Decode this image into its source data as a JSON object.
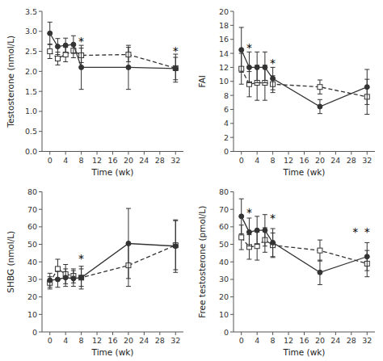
{
  "chart_data": [
    {
      "type": "line",
      "xlabel": "Time (wk)",
      "ylabel": "Testosterone (nmol/L)",
      "x": [
        0,
        2,
        4,
        6,
        8,
        20,
        32
      ],
      "xlim": [
        -2,
        34
      ],
      "xticks": [
        0,
        4,
        8,
        12,
        16,
        20,
        24,
        28,
        32
      ],
      "ylim": [
        0.0,
        3.5
      ],
      "yticks": [
        {
          "value": 0.0,
          "label": "0.0"
        },
        0.5,
        {
          "value": 1.0,
          "label": "1.0"
        },
        1.5,
        {
          "value": 2.0,
          "label": "2.0"
        },
        2.5,
        {
          "value": 3.0,
          "label": "3.0"
        },
        3.5
      ],
      "grid": false,
      "series": [
        {
          "color": "#333333",
          "marker": "circle",
          "line_style": "solid",
          "values": [
            2.95,
            2.62,
            2.65,
            2.67,
            2.1,
            2.1,
            2.07
          ],
          "errors": [
            0.28,
            0.2,
            0.18,
            0.22,
            0.55,
            0.55,
            0.28
          ]
        },
        {
          "color": "#333333",
          "marker": "open-square",
          "line_style": "dashed",
          "values": [
            2.5,
            2.32,
            2.42,
            2.52,
            2.4,
            2.42,
            2.08
          ],
          "errors": [
            0.18,
            0.16,
            0.18,
            0.18,
            0.18,
            0.18,
            0.35
          ]
        }
      ],
      "annotations": [
        {
          "text": "*",
          "x": 8,
          "y": 2.8
        },
        {
          "text": "*",
          "x": 32,
          "y": 2.55
        }
      ]
    },
    {
      "type": "line",
      "xlabel": "Time (wk)",
      "ylabel": "FAI",
      "x": [
        0,
        2,
        4,
        6,
        8,
        20,
        32
      ],
      "xlim": [
        -2,
        34
      ],
      "xticks": [
        0,
        4,
        8,
        12,
        16,
        20,
        24,
        28,
        32
      ],
      "ylim": [
        0,
        20
      ],
      "yticks": [
        0,
        2,
        4,
        6,
        8,
        10,
        12,
        14,
        16,
        18,
        20
      ],
      "grid": false,
      "series": [
        {
          "color": "#333333",
          "marker": "circle",
          "line_style": "solid",
          "values": [
            14.5,
            12.0,
            12.0,
            12.0,
            10.4,
            6.4,
            9.2
          ],
          "errors": [
            3.2,
            2.2,
            2.2,
            2.2,
            1.6,
            1.0,
            2.5
          ]
        },
        {
          "color": "#333333",
          "marker": "open-square",
          "line_style": "dashed",
          "values": [
            11.8,
            9.6,
            9.8,
            9.8,
            9.6,
            9.2,
            7.8
          ],
          "errors": [
            2.2,
            1.8,
            2.5,
            2.5,
            1.2,
            1.0,
            2.5
          ]
        }
      ],
      "annotations": [
        {
          "text": "*",
          "x": 2,
          "y": 15.0
        },
        {
          "text": "*",
          "x": 8,
          "y": 12.8
        }
      ]
    },
    {
      "type": "line",
      "xlabel": "Time (wk)",
      "ylabel": "SHBG (nmol/L)",
      "x": [
        0,
        2,
        4,
        6,
        8,
        20,
        32
      ],
      "xlim": [
        -2,
        34
      ],
      "xticks": [
        0,
        4,
        8,
        12,
        16,
        20,
        24,
        28,
        32
      ],
      "ylim": [
        0,
        80
      ],
      "yticks": [
        0,
        10,
        20,
        30,
        40,
        50,
        60,
        70,
        80
      ],
      "grid": false,
      "series": [
        {
          "color": "#333333",
          "marker": "circle",
          "line_style": "solid",
          "values": [
            29.5,
            30.0,
            31.0,
            30.5,
            31.0,
            50.5,
            49.0
          ],
          "errors": [
            4.0,
            4.5,
            5.0,
            4.5,
            5.0,
            20.0,
            15.0
          ]
        },
        {
          "color": "#333333",
          "marker": "open-square",
          "line_style": "dashed",
          "values": [
            28.0,
            36.0,
            33.0,
            32.0,
            31.0,
            38.0,
            49.5
          ],
          "errors": [
            3.5,
            5.5,
            5.5,
            4.0,
            6.5,
            12.0,
            14.0
          ]
        }
      ],
      "annotations": [
        {
          "text": "*",
          "x": 8,
          "y": 43
        }
      ]
    },
    {
      "type": "line",
      "xlabel": "Time (wk)",
      "ylabel": "Free testosterone (pmol/L)",
      "x": [
        0,
        2,
        4,
        6,
        8,
        20,
        32
      ],
      "xlim": [
        -2,
        34
      ],
      "xticks": [
        0,
        4,
        8,
        12,
        16,
        20,
        24,
        28,
        32
      ],
      "ylim": [
        0,
        80
      ],
      "yticks": [
        0,
        10,
        20,
        30,
        40,
        50,
        60,
        70,
        80
      ],
      "grid": false,
      "series": [
        {
          "color": "#333333",
          "marker": "circle",
          "line_style": "solid",
          "values": [
            66.0,
            57.0,
            58.0,
            58.0,
            51.0,
            34.0,
            43.0
          ],
          "errors": [
            10.0,
            8.0,
            8.0,
            9.0,
            8.0,
            7.0,
            8.0
          ]
        },
        {
          "color": "#333333",
          "marker": "open-square",
          "line_style": "dashed",
          "values": [
            54.0,
            48.5,
            49.0,
            52.5,
            49.5,
            46.5,
            39.0
          ],
          "errors": [
            7.0,
            7.0,
            8.0,
            7.0,
            7.0,
            6.0,
            7.5
          ]
        }
      ],
      "annotations": [
        {
          "text": "*",
          "x": 2,
          "y": 69
        },
        {
          "text": "*",
          "x": 8,
          "y": 66
        },
        {
          "text": "*",
          "x": 29,
          "y": 58
        },
        {
          "text": "*",
          "x": 32,
          "y": 58
        }
      ]
    }
  ]
}
